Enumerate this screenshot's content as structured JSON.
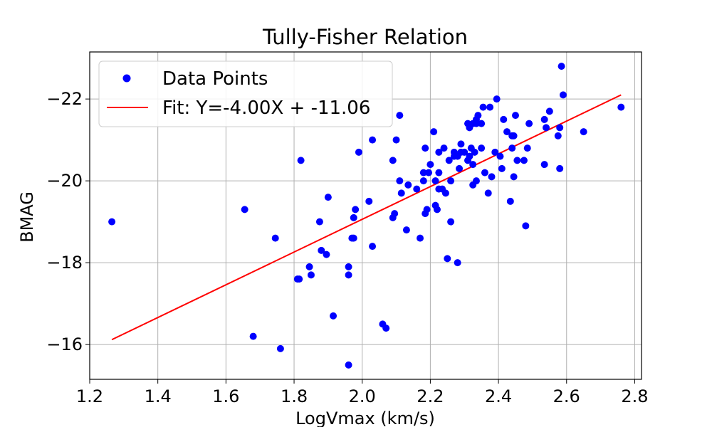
{
  "chart_data": {
    "type": "scatter",
    "title": "Tully-Fisher Relation",
    "xlabel": "LogVmax (km/s)",
    "ylabel": "BMAG",
    "xlim": [
      1.2,
      2.82
    ],
    "ylim": [
      -15.15,
      -23.15
    ],
    "y_inverted": true,
    "grid": true,
    "legend_position": "top-left",
    "x_ticks": [
      1.2,
      1.4,
      1.6,
      1.8,
      2.0,
      2.2,
      2.4,
      2.6,
      2.8
    ],
    "x_tick_labels": [
      "1.2",
      "1.4",
      "1.6",
      "1.8",
      "2.0",
      "2.2",
      "2.4",
      "2.6",
      "2.8"
    ],
    "y_ticks": [
      -16,
      -18,
      -20,
      -22
    ],
    "y_tick_labels": [
      "−16",
      "−18",
      "−20",
      "−22"
    ],
    "series": [
      {
        "name": "Data Points",
        "kind": "scatter",
        "color": "#0000ff",
        "points": [
          [
            1.265,
            -19.0
          ],
          [
            1.655,
            -19.3
          ],
          [
            1.68,
            -16.2
          ],
          [
            1.745,
            -18.6
          ],
          [
            1.76,
            -15.9
          ],
          [
            1.81,
            -17.6
          ],
          [
            1.815,
            -17.6
          ],
          [
            1.82,
            -20.5
          ],
          [
            1.845,
            -17.9
          ],
          [
            1.85,
            -17.7
          ],
          [
            1.875,
            -19.0
          ],
          [
            1.88,
            -18.3
          ],
          [
            1.895,
            -18.2
          ],
          [
            1.9,
            -19.6
          ],
          [
            1.915,
            -16.7
          ],
          [
            1.96,
            -15.5
          ],
          [
            1.96,
            -17.9
          ],
          [
            1.96,
            -17.7
          ],
          [
            1.97,
            -18.6
          ],
          [
            1.975,
            -18.6
          ],
          [
            1.975,
            -19.1
          ],
          [
            1.98,
            -19.3
          ],
          [
            1.99,
            -20.7
          ],
          [
            2.02,
            -19.5
          ],
          [
            2.03,
            -18.4
          ],
          [
            2.03,
            -21.0
          ],
          [
            2.06,
            -16.5
          ],
          [
            2.07,
            -16.4
          ],
          [
            2.09,
            -20.5
          ],
          [
            2.09,
            -19.1
          ],
          [
            2.095,
            -19.2
          ],
          [
            2.1,
            -21.0
          ],
          [
            2.11,
            -21.6
          ],
          [
            2.11,
            -20.0
          ],
          [
            2.115,
            -19.7
          ],
          [
            2.13,
            -18.8
          ],
          [
            2.135,
            -19.9
          ],
          [
            2.16,
            -19.8
          ],
          [
            2.17,
            -18.6
          ],
          [
            2.18,
            -20.2
          ],
          [
            2.18,
            -20.0
          ],
          [
            2.185,
            -20.8
          ],
          [
            2.185,
            -19.2
          ],
          [
            2.19,
            -19.3
          ],
          [
            2.195,
            -20.2
          ],
          [
            2.2,
            -20.4
          ],
          [
            2.21,
            -21.2
          ],
          [
            2.215,
            -20.0
          ],
          [
            2.215,
            -19.4
          ],
          [
            2.22,
            -19.3
          ],
          [
            2.225,
            -20.7
          ],
          [
            2.225,
            -20.2
          ],
          [
            2.225,
            -19.8
          ],
          [
            2.235,
            -19.8
          ],
          [
            2.24,
            -20.8
          ],
          [
            2.245,
            -19.7
          ],
          [
            2.25,
            -18.1
          ],
          [
            2.255,
            -20.5
          ],
          [
            2.26,
            -20.0
          ],
          [
            2.26,
            -19.0
          ],
          [
            2.27,
            -20.7
          ],
          [
            2.27,
            -20.6
          ],
          [
            2.28,
            -20.6
          ],
          [
            2.28,
            -18.0
          ],
          [
            2.285,
            -20.3
          ],
          [
            2.29,
            -20.9
          ],
          [
            2.29,
            -20.7
          ],
          [
            2.3,
            -20.7
          ],
          [
            2.31,
            -21.4
          ],
          [
            2.31,
            -20.5
          ],
          [
            2.315,
            -21.3
          ],
          [
            2.315,
            -20.6
          ],
          [
            2.32,
            -20.8
          ],
          [
            2.325,
            -21.4
          ],
          [
            2.325,
            -20.4
          ],
          [
            2.325,
            -19.9
          ],
          [
            2.33,
            -20.7
          ],
          [
            2.335,
            -21.5
          ],
          [
            2.335,
            -21.4
          ],
          [
            2.335,
            -20.0
          ],
          [
            2.34,
            -21.6
          ],
          [
            2.35,
            -21.4
          ],
          [
            2.35,
            -20.8
          ],
          [
            2.355,
            -21.8
          ],
          [
            2.36,
            -20.2
          ],
          [
            2.37,
            -19.7
          ],
          [
            2.375,
            -21.8
          ],
          [
            2.38,
            -20.1
          ],
          [
            2.39,
            -20.7
          ],
          [
            2.395,
            -22.0
          ],
          [
            2.405,
            -20.6
          ],
          [
            2.41,
            -20.3
          ],
          [
            2.415,
            -21.5
          ],
          [
            2.425,
            -21.2
          ],
          [
            2.435,
            -19.5
          ],
          [
            2.44,
            -21.1
          ],
          [
            2.44,
            -20.8
          ],
          [
            2.445,
            -21.1
          ],
          [
            2.445,
            -20.1
          ],
          [
            2.45,
            -21.6
          ],
          [
            2.455,
            -20.5
          ],
          [
            2.475,
            -20.5
          ],
          [
            2.48,
            -18.9
          ],
          [
            2.485,
            -20.8
          ],
          [
            2.49,
            -21.4
          ],
          [
            2.535,
            -21.5
          ],
          [
            2.535,
            -20.4
          ],
          [
            2.54,
            -21.3
          ],
          [
            2.55,
            -21.7
          ],
          [
            2.575,
            -21.1
          ],
          [
            2.58,
            -21.3
          ],
          [
            2.58,
            -20.3
          ],
          [
            2.585,
            -22.8
          ],
          [
            2.59,
            -22.1
          ],
          [
            2.65,
            -21.2
          ],
          [
            2.76,
            -21.8
          ]
        ]
      },
      {
        "name": "Fit: Y=-4.00X + -11.06",
        "kind": "line",
        "color": "#ff0000",
        "points": [
          [
            1.265,
            -16.12
          ],
          [
            2.76,
            -22.1
          ]
        ]
      }
    ]
  }
}
